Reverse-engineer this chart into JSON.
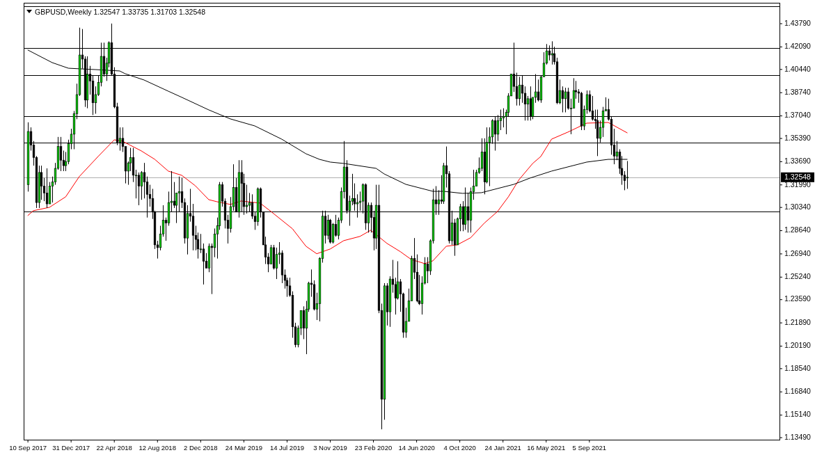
{
  "chart_data": {
    "type": "candlestick",
    "title": "GBPUSD,Weekly  1.32547 1.33735 1.31703 1.32548",
    "xlim": [
      "2017-08-30",
      "2023-01-11"
    ],
    "ylim": [
      1.1334,
      1.4532
    ],
    "xticks": [
      {
        "value": "2017-09-10",
        "label": "10 Sep 2017"
      },
      {
        "value": "2017-12-31",
        "label": "31 Dec 2017"
      },
      {
        "value": "2018-04-22",
        "label": "22 Apr 2018"
      },
      {
        "value": "2018-08-12",
        "label": "12 Aug 2018"
      },
      {
        "value": "2018-12-02",
        "label": "2 Dec 2018"
      },
      {
        "value": "2019-03-24",
        "label": "24 Mar 2019"
      },
      {
        "value": "2019-07-14",
        "label": "14 Jul 2019"
      },
      {
        "value": "2019-11-03",
        "label": "3 Nov 2019"
      },
      {
        "value": "2020-02-23",
        "label": "23 Feb 2020"
      },
      {
        "value": "2020-06-14",
        "label": "14 Jun 2020"
      },
      {
        "value": "2020-10-04",
        "label": "4 Oct 2020"
      },
      {
        "value": "2021-01-24",
        "label": "24 Jan 2021"
      },
      {
        "value": "2021-05-16",
        "label": "16 May 2021"
      },
      {
        "value": "2021-09-05",
        "label": "5 Sep 2021"
      }
    ],
    "yticks": [
      {
        "value": 1.4379,
        "label": "1.43790"
      },
      {
        "value": 1.4209,
        "label": "1.42090"
      },
      {
        "value": 1.4044,
        "label": "1.40440"
      },
      {
        "value": 1.3874,
        "label": "1.38740"
      },
      {
        "value": 1.3704,
        "label": "1.37040"
      },
      {
        "value": 1.3539,
        "label": "1.35390"
      },
      {
        "value": 1.3369,
        "label": "1.33690"
      },
      {
        "value": 1.3199,
        "label": "1.31990"
      },
      {
        "value": 1.3034,
        "label": "1.30340"
      },
      {
        "value": 1.2864,
        "label": "1.28640"
      },
      {
        "value": 1.2694,
        "label": "1.26940"
      },
      {
        "value": 1.2524,
        "label": "1.25240"
      },
      {
        "value": 1.2359,
        "label": "1.23590"
      },
      {
        "value": 1.2189,
        "label": "1.21890"
      },
      {
        "value": 1.2019,
        "label": "1.20190"
      },
      {
        "value": 1.1854,
        "label": "1.18540"
      },
      {
        "value": 1.1684,
        "label": "1.16840"
      },
      {
        "value": 1.1514,
        "label": "1.15140"
      },
      {
        "value": 1.1349,
        "label": "1.13490"
      }
    ],
    "ref_lines": [
      {
        "axis": "y",
        "value": 1.4505,
        "color": "#000000"
      },
      {
        "axis": "y",
        "value": 1.4201,
        "color": "#000000"
      },
      {
        "axis": "y",
        "value": 1.4002,
        "color": "#000000"
      },
      {
        "axis": "y",
        "value": 1.3702,
        "color": "#000000"
      },
      {
        "axis": "y",
        "value": 1.3509,
        "color": "#000000"
      },
      {
        "axis": "y",
        "value": 1.3005,
        "color": "#000000"
      },
      {
        "axis": "y",
        "value": 1.32548,
        "label": "1.32548",
        "color": "#b0b0b0"
      }
    ],
    "x": [
      "2017-09-10",
      "2017-09-17",
      "2017-09-24",
      "2017-10-01",
      "2017-10-08",
      "2017-10-15",
      "2017-10-22",
      "2017-10-29",
      "2017-11-05",
      "2017-11-12",
      "2017-11-19",
      "2017-11-26",
      "2017-12-03",
      "2017-12-10",
      "2017-12-17",
      "2017-12-24",
      "2017-12-31",
      "2018-01-07",
      "2018-01-14",
      "2018-01-21",
      "2018-01-28",
      "2018-02-04",
      "2018-02-11",
      "2018-02-18",
      "2018-02-25",
      "2018-03-04",
      "2018-03-11",
      "2018-03-18",
      "2018-03-25",
      "2018-04-01",
      "2018-04-08",
      "2018-04-15",
      "2018-04-22",
      "2018-04-29",
      "2018-05-06",
      "2018-05-13",
      "2018-05-20",
      "2018-05-27",
      "2018-06-03",
      "2018-06-10",
      "2018-06-17",
      "2018-06-24",
      "2018-07-01",
      "2018-07-08",
      "2018-07-15",
      "2018-07-22",
      "2018-07-29",
      "2018-08-05",
      "2018-08-12",
      "2018-08-19",
      "2018-08-26",
      "2018-09-02",
      "2018-09-09",
      "2018-09-16",
      "2018-09-23",
      "2018-09-30",
      "2018-10-07",
      "2018-10-14",
      "2018-10-21",
      "2018-10-28",
      "2018-11-04",
      "2018-11-11",
      "2018-11-18",
      "2018-11-25",
      "2018-12-02",
      "2018-12-09",
      "2018-12-16",
      "2018-12-23",
      "2018-12-30",
      "2019-01-06",
      "2019-01-13",
      "2019-01-20",
      "2019-01-27",
      "2019-02-03",
      "2019-02-10",
      "2019-02-17",
      "2019-02-24",
      "2019-03-03",
      "2019-03-10",
      "2019-03-17",
      "2019-03-24",
      "2019-03-31",
      "2019-04-07",
      "2019-04-14",
      "2019-04-21",
      "2019-04-28",
      "2019-05-05",
      "2019-05-12",
      "2019-05-19",
      "2019-05-26",
      "2019-06-02",
      "2019-06-09",
      "2019-06-16",
      "2019-06-23",
      "2019-06-30",
      "2019-07-07",
      "2019-07-14",
      "2019-07-21",
      "2019-07-28",
      "2019-08-04",
      "2019-08-11",
      "2019-08-18",
      "2019-08-25",
      "2019-09-01",
      "2019-09-08",
      "2019-09-15",
      "2019-09-22",
      "2019-09-29",
      "2019-10-06",
      "2019-10-13",
      "2019-10-20",
      "2019-10-27",
      "2019-11-03",
      "2019-11-10",
      "2019-11-17",
      "2019-11-24",
      "2019-12-01",
      "2019-12-08",
      "2019-12-15",
      "2019-12-22",
      "2019-12-29",
      "2020-01-05",
      "2020-01-12",
      "2020-01-19",
      "2020-01-26",
      "2020-02-02",
      "2020-02-09",
      "2020-02-16",
      "2020-02-23",
      "2020-03-01",
      "2020-03-08",
      "2020-03-15",
      "2020-03-22",
      "2020-03-29",
      "2020-04-05",
      "2020-04-12",
      "2020-04-19",
      "2020-04-26",
      "2020-05-03",
      "2020-05-10",
      "2020-05-17",
      "2020-05-24",
      "2020-05-31",
      "2020-06-07",
      "2020-06-14",
      "2020-06-21",
      "2020-06-28",
      "2020-07-05",
      "2020-07-12",
      "2020-07-19",
      "2020-07-26",
      "2020-08-02",
      "2020-08-09",
      "2020-08-16",
      "2020-08-23",
      "2020-08-30",
      "2020-09-06",
      "2020-09-13",
      "2020-09-20",
      "2020-09-27",
      "2020-10-04",
      "2020-10-11",
      "2020-10-18",
      "2020-10-25",
      "2020-11-01",
      "2020-11-08",
      "2020-11-15",
      "2020-11-22",
      "2020-11-29",
      "2020-12-06",
      "2020-12-13",
      "2020-12-20",
      "2020-12-27",
      "2021-01-03",
      "2021-01-10",
      "2021-01-17",
      "2021-01-24",
      "2021-01-31",
      "2021-02-07",
      "2021-02-14",
      "2021-02-21",
      "2021-02-28",
      "2021-03-07",
      "2021-03-14",
      "2021-03-21",
      "2021-03-28",
      "2021-04-04",
      "2021-04-11",
      "2021-04-18",
      "2021-04-25",
      "2021-05-02",
      "2021-05-09",
      "2021-05-16",
      "2021-05-23",
      "2021-05-30",
      "2021-06-06",
      "2021-06-13",
      "2021-06-20",
      "2021-06-27",
      "2021-07-04",
      "2021-07-11",
      "2021-07-18",
      "2021-07-25",
      "2021-08-01",
      "2021-08-08",
      "2021-08-15",
      "2021-08-22",
      "2021-08-29",
      "2021-09-05",
      "2021-09-12",
      "2021-09-19",
      "2021-09-26",
      "2021-10-03",
      "2021-10-10",
      "2021-10-17",
      "2021-10-24",
      "2021-10-31",
      "2021-11-07",
      "2021-11-14",
      "2021-11-21",
      "2021-11-28",
      "2021-12-05",
      "2021-12-12"
    ],
    "ohlc": [
      [
        1.32,
        1.3657,
        1.315,
        1.359
      ],
      [
        1.359,
        1.362,
        1.345,
        1.349
      ],
      [
        1.349,
        1.352,
        1.334,
        1.34
      ],
      [
        1.34,
        1.341,
        1.303,
        1.307
      ],
      [
        1.307,
        1.334,
        1.303,
        1.329
      ],
      [
        1.329,
        1.334,
        1.309,
        1.319
      ],
      [
        1.319,
        1.325,
        1.308,
        1.314
      ],
      [
        1.314,
        1.332,
        1.303,
        1.306
      ],
      [
        1.306,
        1.322,
        1.306,
        1.319
      ],
      [
        1.319,
        1.326,
        1.307,
        1.322
      ],
      [
        1.322,
        1.336,
        1.32,
        1.332
      ],
      [
        1.332,
        1.355,
        1.331,
        1.348
      ],
      [
        1.348,
        1.355,
        1.33,
        1.338
      ],
      [
        1.338,
        1.345,
        1.33,
        1.334
      ],
      [
        1.334,
        1.344,
        1.33,
        1.337
      ],
      [
        1.337,
        1.353,
        1.335,
        1.35
      ],
      [
        1.35,
        1.361,
        1.346,
        1.357
      ],
      [
        1.357,
        1.374,
        1.346,
        1.372
      ],
      [
        1.372,
        1.394,
        1.368,
        1.386
      ],
      [
        1.386,
        1.435,
        1.385,
        1.415
      ],
      [
        1.415,
        1.434,
        1.405,
        1.412
      ],
      [
        1.412,
        1.414,
        1.377,
        1.382
      ],
      [
        1.382,
        1.414,
        1.376,
        1.401
      ],
      [
        1.401,
        1.407,
        1.386,
        1.396
      ],
      [
        1.396,
        1.4,
        1.371,
        1.38
      ],
      [
        1.38,
        1.392,
        1.372,
        1.386
      ],
      [
        1.386,
        1.4,
        1.385,
        1.395
      ],
      [
        1.395,
        1.424,
        1.392,
        1.414
      ],
      [
        1.414,
        1.424,
        1.399,
        1.401
      ],
      [
        1.401,
        1.413,
        1.396,
        1.409
      ],
      [
        1.409,
        1.425,
        1.406,
        1.424
      ],
      [
        1.424,
        1.438,
        1.4,
        1.401
      ],
      [
        1.401,
        1.406,
        1.376,
        1.377
      ],
      [
        1.377,
        1.38,
        1.349,
        1.351
      ],
      [
        1.351,
        1.362,
        1.345,
        1.354
      ],
      [
        1.354,
        1.362,
        1.344,
        1.348
      ],
      [
        1.348,
        1.348,
        1.321,
        1.33
      ],
      [
        1.33,
        1.337,
        1.32,
        1.336
      ],
      [
        1.336,
        1.347,
        1.33,
        1.34
      ],
      [
        1.34,
        1.347,
        1.322,
        1.327
      ],
      [
        1.327,
        1.331,
        1.31,
        1.327
      ],
      [
        1.327,
        1.329,
        1.305,
        1.319
      ],
      [
        1.319,
        1.33,
        1.309,
        1.329
      ],
      [
        1.329,
        1.336,
        1.31,
        1.322
      ],
      [
        1.322,
        1.326,
        1.296,
        1.313
      ],
      [
        1.313,
        1.32,
        1.304,
        1.31
      ],
      [
        1.31,
        1.317,
        1.295,
        1.3
      ],
      [
        1.3,
        1.301,
        1.273,
        1.276
      ],
      [
        1.276,
        1.279,
        1.266,
        1.274
      ],
      [
        1.274,
        1.29,
        1.272,
        1.284
      ],
      [
        1.284,
        1.305,
        1.282,
        1.294
      ],
      [
        1.294,
        1.296,
        1.279,
        1.292
      ],
      [
        1.292,
        1.315,
        1.29,
        1.307
      ],
      [
        1.307,
        1.33,
        1.3,
        1.308
      ],
      [
        1.308,
        1.322,
        1.303,
        1.305
      ],
      [
        1.305,
        1.314,
        1.292,
        1.314
      ],
      [
        1.314,
        1.326,
        1.3,
        1.315
      ],
      [
        1.315,
        1.325,
        1.303,
        1.307
      ],
      [
        1.307,
        1.31,
        1.277,
        1.281
      ],
      [
        1.281,
        1.305,
        1.269,
        1.299
      ],
      [
        1.299,
        1.317,
        1.293,
        1.297
      ],
      [
        1.297,
        1.306,
        1.272,
        1.283
      ],
      [
        1.283,
        1.29,
        1.272,
        1.28
      ],
      [
        1.28,
        1.285,
        1.266,
        1.273
      ],
      [
        1.273,
        1.284,
        1.27,
        1.273
      ],
      [
        1.273,
        1.277,
        1.247,
        1.264
      ],
      [
        1.264,
        1.27,
        1.259,
        1.259
      ],
      [
        1.259,
        1.277,
        1.256,
        1.275
      ],
      [
        1.275,
        1.277,
        1.24,
        1.274
      ],
      [
        1.274,
        1.288,
        1.267,
        1.284
      ],
      [
        1.284,
        1.296,
        1.266,
        1.29
      ],
      [
        1.29,
        1.322,
        1.287,
        1.32
      ],
      [
        1.32,
        1.322,
        1.304,
        1.308
      ],
      [
        1.308,
        1.31,
        1.288,
        1.294
      ],
      [
        1.294,
        1.298,
        1.277,
        1.288
      ],
      [
        1.288,
        1.311,
        1.285,
        1.304
      ],
      [
        1.304,
        1.335,
        1.301,
        1.318
      ],
      [
        1.318,
        1.325,
        1.3,
        1.3
      ],
      [
        1.3,
        1.338,
        1.296,
        1.329
      ],
      [
        1.329,
        1.338,
        1.3,
        1.321
      ],
      [
        1.321,
        1.328,
        1.298,
        1.304
      ],
      [
        1.304,
        1.32,
        1.299,
        1.305
      ],
      [
        1.305,
        1.314,
        1.3,
        1.307
      ],
      [
        1.307,
        1.313,
        1.295,
        1.297
      ],
      [
        1.297,
        1.3,
        1.287,
        1.293
      ],
      [
        1.293,
        1.318,
        1.29,
        1.317
      ],
      [
        1.317,
        1.318,
        1.296,
        1.3
      ],
      [
        1.3,
        1.3,
        1.276,
        1.276
      ],
      [
        1.276,
        1.282,
        1.262,
        1.267
      ],
      [
        1.267,
        1.27,
        1.256,
        1.262
      ],
      [
        1.262,
        1.276,
        1.262,
        1.274
      ],
      [
        1.274,
        1.276,
        1.258,
        1.259
      ],
      [
        1.259,
        1.274,
        1.251,
        1.269
      ],
      [
        1.269,
        1.278,
        1.262,
        1.27
      ],
      [
        1.27,
        1.272,
        1.248,
        1.254
      ],
      [
        1.254,
        1.258,
        1.244,
        1.25
      ],
      [
        1.25,
        1.252,
        1.238,
        1.246
      ],
      [
        1.246,
        1.252,
        1.238,
        1.239
      ],
      [
        1.239,
        1.242,
        1.208,
        1.216
      ],
      [
        1.216,
        1.219,
        1.201,
        1.203
      ],
      [
        1.203,
        1.217,
        1.201,
        1.215
      ],
      [
        1.215,
        1.228,
        1.21,
        1.228
      ],
      [
        1.228,
        1.231,
        1.207,
        1.215
      ],
      [
        1.215,
        1.235,
        1.196,
        1.229
      ],
      [
        1.229,
        1.249,
        1.227,
        1.248
      ],
      [
        1.248,
        1.258,
        1.238,
        1.247
      ],
      [
        1.247,
        1.25,
        1.228,
        1.229
      ],
      [
        1.229,
        1.241,
        1.221,
        1.233
      ],
      [
        1.233,
        1.267,
        1.22,
        1.266
      ],
      [
        1.266,
        1.301,
        1.263,
        1.297
      ],
      [
        1.297,
        1.301,
        1.277,
        1.283
      ],
      [
        1.283,
        1.298,
        1.28,
        1.294
      ],
      [
        1.294,
        1.295,
        1.277,
        1.278
      ],
      [
        1.278,
        1.292,
        1.277,
        1.291
      ],
      [
        1.291,
        1.298,
        1.282,
        1.283
      ],
      [
        1.283,
        1.296,
        1.28,
        1.294
      ],
      [
        1.294,
        1.318,
        1.292,
        1.315
      ],
      [
        1.315,
        1.352,
        1.31,
        1.333
      ],
      [
        1.333,
        1.338,
        1.299,
        1.301
      ],
      [
        1.301,
        1.312,
        1.29,
        1.308
      ],
      [
        1.308,
        1.328,
        1.305,
        1.31
      ],
      [
        1.31,
        1.321,
        1.301,
        1.306
      ],
      [
        1.306,
        1.313,
        1.296,
        1.307
      ],
      [
        1.307,
        1.315,
        1.301,
        1.308
      ],
      [
        1.308,
        1.321,
        1.299,
        1.32
      ],
      [
        1.32,
        1.321,
        1.287,
        1.292
      ],
      [
        1.292,
        1.307,
        1.285,
        1.305
      ],
      [
        1.305,
        1.307,
        1.285,
        1.296
      ],
      [
        1.296,
        1.301,
        1.272,
        1.281
      ],
      [
        1.281,
        1.32,
        1.273,
        1.305
      ],
      [
        1.305,
        1.32,
        1.226,
        1.228
      ],
      [
        1.228,
        1.233,
        1.141,
        1.163
      ],
      [
        1.163,
        1.248,
        1.148,
        1.246
      ],
      [
        1.246,
        1.248,
        1.217,
        1.227
      ],
      [
        1.227,
        1.253,
        1.216,
        1.251
      ],
      [
        1.251,
        1.265,
        1.241,
        1.247
      ],
      [
        1.247,
        1.252,
        1.225,
        1.237
      ],
      [
        1.237,
        1.264,
        1.236,
        1.249
      ],
      [
        1.249,
        1.251,
        1.227,
        1.24
      ],
      [
        1.24,
        1.241,
        1.208,
        1.212
      ],
      [
        1.212,
        1.23,
        1.208,
        1.22
      ],
      [
        1.22,
        1.244,
        1.22,
        1.235
      ],
      [
        1.235,
        1.268,
        1.235,
        1.266
      ],
      [
        1.266,
        1.281,
        1.251,
        1.256
      ],
      [
        1.256,
        1.269,
        1.234,
        1.235
      ],
      [
        1.235,
        1.254,
        1.232,
        1.233
      ],
      [
        1.233,
        1.253,
        1.225,
        1.248
      ],
      [
        1.248,
        1.267,
        1.247,
        1.262
      ],
      [
        1.262,
        1.267,
        1.248,
        1.257
      ],
      [
        1.257,
        1.28,
        1.254,
        1.279
      ],
      [
        1.279,
        1.317,
        1.277,
        1.309
      ],
      [
        1.309,
        1.319,
        1.298,
        1.306
      ],
      [
        1.306,
        1.316,
        1.298,
        1.309
      ],
      [
        1.309,
        1.327,
        1.306,
        1.308
      ],
      [
        1.308,
        1.336,
        1.306,
        1.334
      ],
      [
        1.334,
        1.348,
        1.318,
        1.328
      ],
      [
        1.328,
        1.33,
        1.277,
        1.279
      ],
      [
        1.279,
        1.301,
        1.276,
        1.292
      ],
      [
        1.292,
        1.295,
        1.268,
        1.276
      ],
      [
        1.276,
        1.296,
        1.276,
        1.295
      ],
      [
        1.295,
        1.306,
        1.286,
        1.304
      ],
      [
        1.304,
        1.308,
        1.286,
        1.291
      ],
      [
        1.291,
        1.318,
        1.287,
        1.304
      ],
      [
        1.304,
        1.314,
        1.285,
        1.294
      ],
      [
        1.294,
        1.318,
        1.285,
        1.315
      ],
      [
        1.315,
        1.331,
        1.309,
        1.319
      ],
      [
        1.319,
        1.331,
        1.319,
        1.329
      ],
      [
        1.329,
        1.34,
        1.328,
        1.332
      ],
      [
        1.332,
        1.354,
        1.33,
        1.344
      ],
      [
        1.344,
        1.354,
        1.313,
        1.322
      ],
      [
        1.322,
        1.362,
        1.321,
        1.351
      ],
      [
        1.351,
        1.362,
        1.319,
        1.355
      ],
      [
        1.355,
        1.368,
        1.35,
        1.367
      ],
      [
        1.367,
        1.37,
        1.345,
        1.357
      ],
      [
        1.357,
        1.371,
        1.352,
        1.367
      ],
      [
        1.367,
        1.375,
        1.36,
        1.369
      ],
      [
        1.369,
        1.376,
        1.362,
        1.37
      ],
      [
        1.37,
        1.375,
        1.357,
        1.373
      ],
      [
        1.373,
        1.387,
        1.37,
        1.385
      ],
      [
        1.385,
        1.401,
        1.385,
        1.401
      ],
      [
        1.401,
        1.424,
        1.388,
        1.392
      ],
      [
        1.392,
        1.402,
        1.378,
        1.383
      ],
      [
        1.383,
        1.399,
        1.378,
        1.393
      ],
      [
        1.393,
        1.4,
        1.38,
        1.387
      ],
      [
        1.387,
        1.392,
        1.367,
        1.379
      ],
      [
        1.379,
        1.385,
        1.367,
        1.383
      ],
      [
        1.383,
        1.392,
        1.367,
        1.37
      ],
      [
        1.37,
        1.384,
        1.368,
        1.384
      ],
      [
        1.384,
        1.401,
        1.38,
        1.388
      ],
      [
        1.388,
        1.397,
        1.381,
        1.382
      ],
      [
        1.382,
        1.4,
        1.38,
        1.399
      ],
      [
        1.399,
        1.417,
        1.399,
        1.409
      ],
      [
        1.409,
        1.423,
        1.408,
        1.418
      ],
      [
        1.418,
        1.422,
        1.411,
        1.415
      ],
      [
        1.415,
        1.425,
        1.408,
        1.416
      ],
      [
        1.416,
        1.421,
        1.408,
        1.41
      ],
      [
        1.41,
        1.413,
        1.379,
        1.38
      ],
      [
        1.38,
        1.397,
        1.379,
        1.389
      ],
      [
        1.389,
        1.392,
        1.373,
        1.383
      ],
      [
        1.383,
        1.391,
        1.373,
        1.388
      ],
      [
        1.388,
        1.391,
        1.375,
        1.376
      ],
      [
        1.376,
        1.383,
        1.357,
        1.376
      ],
      [
        1.376,
        1.398,
        1.376,
        1.389
      ],
      [
        1.389,
        1.396,
        1.383,
        1.388
      ],
      [
        1.388,
        1.39,
        1.38,
        1.387
      ],
      [
        1.387,
        1.388,
        1.36,
        1.363
      ],
      [
        1.363,
        1.378,
        1.36,
        1.375
      ],
      [
        1.375,
        1.389,
        1.372,
        1.386
      ],
      [
        1.386,
        1.389,
        1.373,
        1.374
      ],
      [
        1.374,
        1.385,
        1.367,
        1.368
      ],
      [
        1.368,
        1.375,
        1.361,
        1.367
      ],
      [
        1.367,
        1.375,
        1.341,
        1.354
      ],
      [
        1.354,
        1.367,
        1.351,
        1.362
      ],
      [
        1.362,
        1.377,
        1.355,
        1.374
      ],
      [
        1.374,
        1.384,
        1.374,
        1.375
      ],
      [
        1.375,
        1.383,
        1.367,
        1.368
      ],
      [
        1.368,
        1.37,
        1.342,
        1.349
      ],
      [
        1.349,
        1.361,
        1.335,
        1.341
      ],
      [
        1.341,
        1.352,
        1.338,
        1.344
      ],
      [
        1.344,
        1.346,
        1.328,
        1.332
      ],
      [
        1.332,
        1.341,
        1.32,
        1.327
      ],
      [
        1.327,
        1.33,
        1.316,
        1.323
      ],
      [
        1.32547,
        1.33735,
        1.31703,
        1.32548
      ]
    ],
    "series": [
      {
        "type": "line",
        "color": "#ff0000",
        "x": [
          "2017-09-10",
          "2017-09-24",
          "2017-11-05",
          "2017-12-17",
          "2018-01-21",
          "2018-03-11",
          "2018-04-22",
          "2018-05-13",
          "2018-07-01",
          "2018-08-05",
          "2018-09-09",
          "2018-10-14",
          "2018-11-18",
          "2018-12-23",
          "2019-01-13",
          "2019-02-17",
          "2019-03-17",
          "2019-05-05",
          "2019-06-02",
          "2019-07-28",
          "2019-09-01",
          "2019-09-29",
          "2019-11-03",
          "2019-12-08",
          "2020-01-19",
          "2020-02-16",
          "2020-03-29",
          "2020-05-03",
          "2020-05-31",
          "2020-07-05",
          "2020-07-26",
          "2020-08-30",
          "2020-09-27",
          "2020-11-01",
          "2020-12-06",
          "2021-01-10",
          "2021-02-07",
          "2021-03-07",
          "2021-04-11",
          "2021-05-02",
          "2021-05-30",
          "2021-07-11",
          "2021-08-29",
          "2021-10-24",
          "2021-12-12"
        ],
        "values": [
          1.2975,
          1.301,
          1.3035,
          1.3112,
          1.3259,
          1.3407,
          1.3529,
          1.3519,
          1.3448,
          1.3386,
          1.33,
          1.3269,
          1.3193,
          1.3091,
          1.3076,
          1.3056,
          1.3081,
          1.3066,
          1.3005,
          1.2878,
          1.275,
          1.2695,
          1.273,
          1.2791,
          1.2822,
          1.2867,
          1.2771,
          1.271,
          1.2653,
          1.2623,
          1.2643,
          1.275,
          1.276,
          1.2812,
          1.2918,
          1.3005,
          1.3112,
          1.3239,
          1.3356,
          1.3407,
          1.3534,
          1.3585,
          1.3651,
          1.3656,
          1.358
        ]
      },
      {
        "type": "line",
        "color": "#000000",
        "x": [
          "2017-09-10",
          "2017-11-12",
          "2017-12-24",
          "2018-03-04",
          "2018-05-06",
          "2018-05-20",
          "2018-07-08",
          "2018-09-09",
          "2018-10-14",
          "2018-12-23",
          "2019-02-17",
          "2019-04-21",
          "2019-06-30",
          "2019-09-01",
          "2019-10-06",
          "2019-11-03",
          "2019-12-08",
          "2020-03-01",
          "2020-03-22",
          "2020-05-17",
          "2020-07-26",
          "2020-08-23",
          "2020-10-11",
          "2020-11-29",
          "2021-02-21",
          "2021-04-04",
          "2021-05-30",
          "2021-08-29",
          "2021-10-24",
          "2021-12-12"
        ],
        "values": [
          1.4186,
          1.4094,
          1.4053,
          1.4043,
          1.4033,
          1.4013,
          1.3967,
          1.3885,
          1.384,
          1.3748,
          1.3682,
          1.3631,
          1.3534,
          1.3427,
          1.3386,
          1.3366,
          1.3356,
          1.332,
          1.3279,
          1.3203,
          1.3152,
          1.3152,
          1.3137,
          1.3142,
          1.3203,
          1.3249,
          1.33,
          1.3366,
          1.3386,
          1.3386
        ]
      }
    ]
  }
}
